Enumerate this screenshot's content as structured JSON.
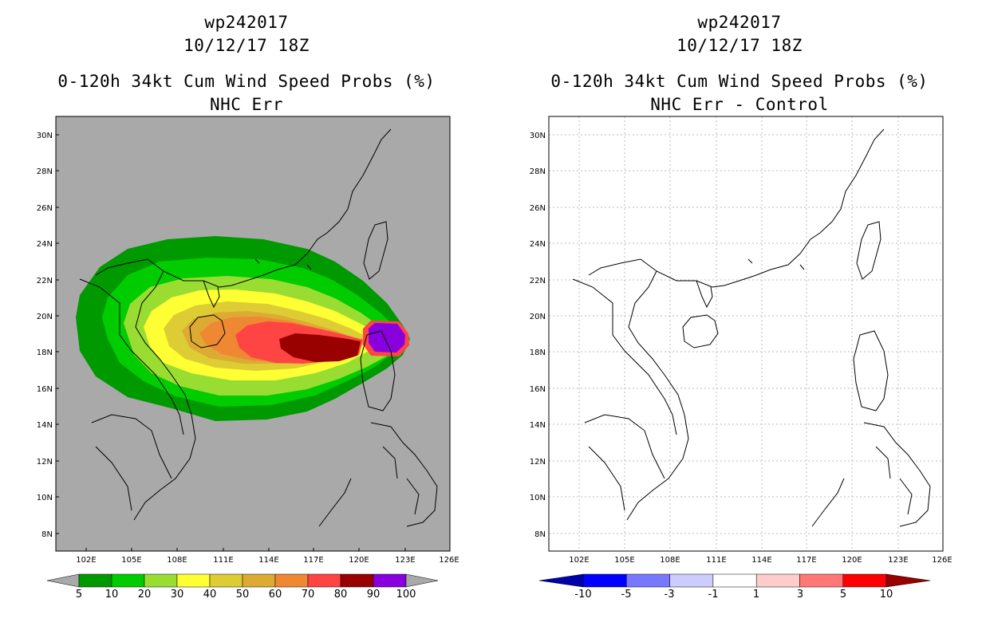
{
  "colors": {
    "ocean_gray": "#a9a9a9",
    "land_line": "#000000",
    "prob_5": "#009900",
    "prob_10": "#00cc00",
    "prob_20": "#99dd33",
    "prob_30": "#ffff33",
    "prob_40": "#ddcc33",
    "prob_50": "#ddaa33",
    "prob_60": "#ee8833",
    "prob_70": "#ff4444",
    "prob_80": "#990000",
    "prob_90": "#8800dd"
  },
  "left_panel": {
    "storm_id": "wp242017",
    "datetime": "10/12/17 18Z",
    "product": "0-120h 34kt Cum Wind Speed Probs (%)",
    "subtitle": "NHC Err",
    "colorbar_labels": [
      "5",
      "10",
      "20",
      "30",
      "40",
      "50",
      "60",
      "70",
      "80",
      "90",
      "100"
    ],
    "colorbar_colors": [
      "#009900",
      "#00cc00",
      "#99dd33",
      "#ffff33",
      "#ddcc33",
      "#ddaa33",
      "#ee8833",
      "#ff4444",
      "#990000",
      "#8800dd"
    ]
  },
  "right_panel": {
    "storm_id": "wp242017",
    "datetime": "10/12/17 18Z",
    "product": "0-120h 34kt Cum Wind Speed Probs (%)",
    "subtitle": "NHC Err - Control",
    "colorbar_labels": [
      "-10",
      "-5",
      "-3",
      "-1",
      "1",
      "3",
      "5",
      "10"
    ],
    "colorbar_colors": [
      "#0000aa",
      "#0000ff",
      "#7777ff",
      "#ccccff",
      "#ffffff",
      "#ffcccc",
      "#ff7777",
      "#ff0000",
      "#990000"
    ]
  },
  "axes": {
    "lat_ticks": [
      "30N",
      "28N",
      "26N",
      "24N",
      "22N",
      "20N",
      "18N",
      "16N",
      "14N",
      "12N",
      "10N",
      "8N"
    ],
    "lon_ticks": [
      "102E",
      "105E",
      "108E",
      "111E",
      "114E",
      "117E",
      "120E",
      "123E",
      "126E"
    ]
  }
}
